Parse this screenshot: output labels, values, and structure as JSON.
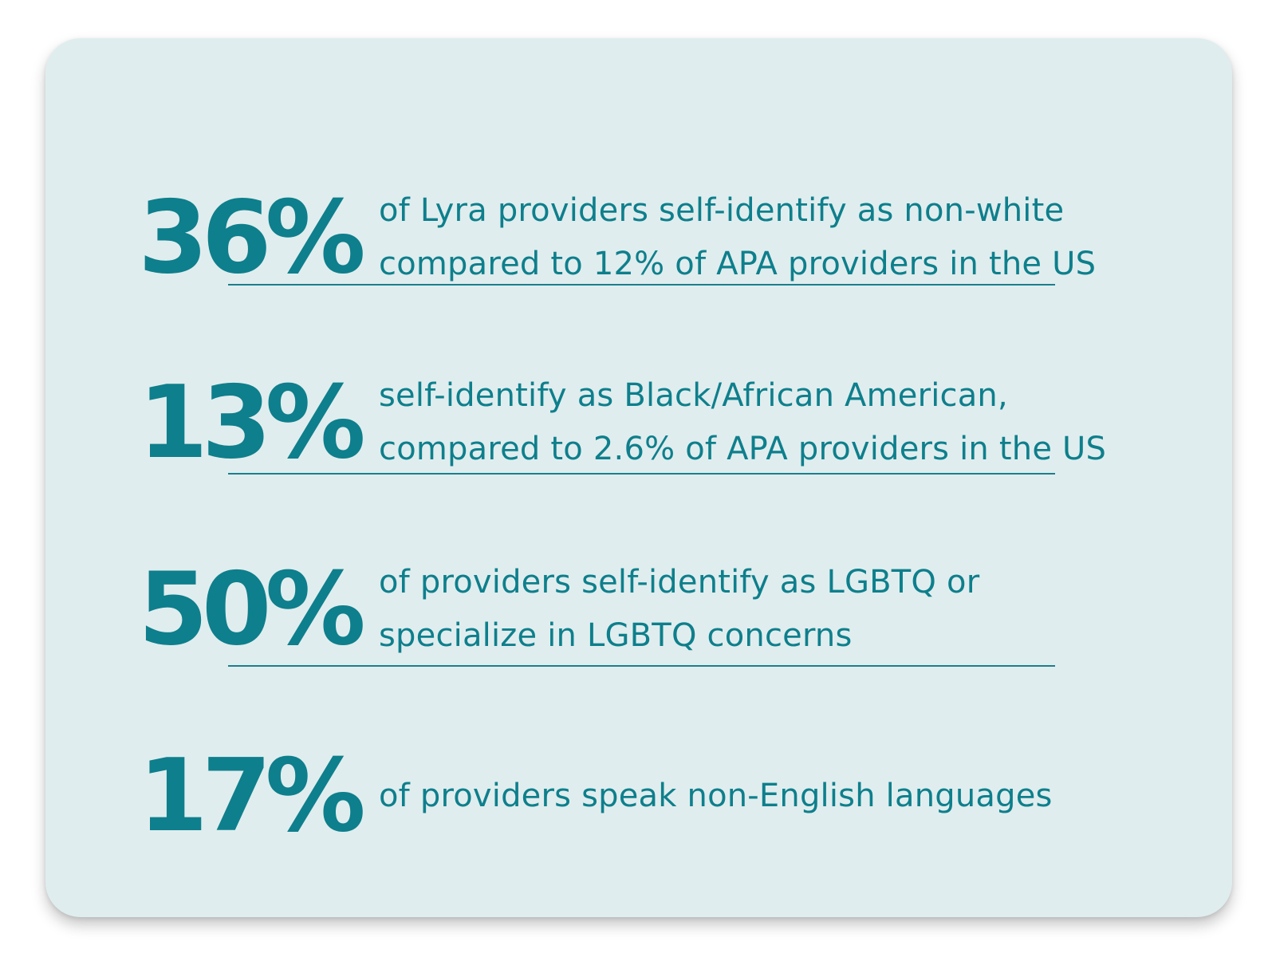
{
  "stats": [
    {
      "value": "36%",
      "line1": "of Lyra providers self-identify as non-white",
      "line2": "compared to 12% of APA providers in the US"
    },
    {
      "value": "13%",
      "line1": "self-identify as Black/African American,",
      "line2": "compared to 2.6% of APA providers in the US"
    },
    {
      "value": "50%",
      "line1": "of providers self-identify as LGBTQ or",
      "line2": "specialize in LGBTQ concerns"
    },
    {
      "value": "17%",
      "line1": "of providers speak non-English languages",
      "line2": ""
    }
  ],
  "colors": {
    "card_background": "#e0edee",
    "accent": "#0e7f8c"
  }
}
